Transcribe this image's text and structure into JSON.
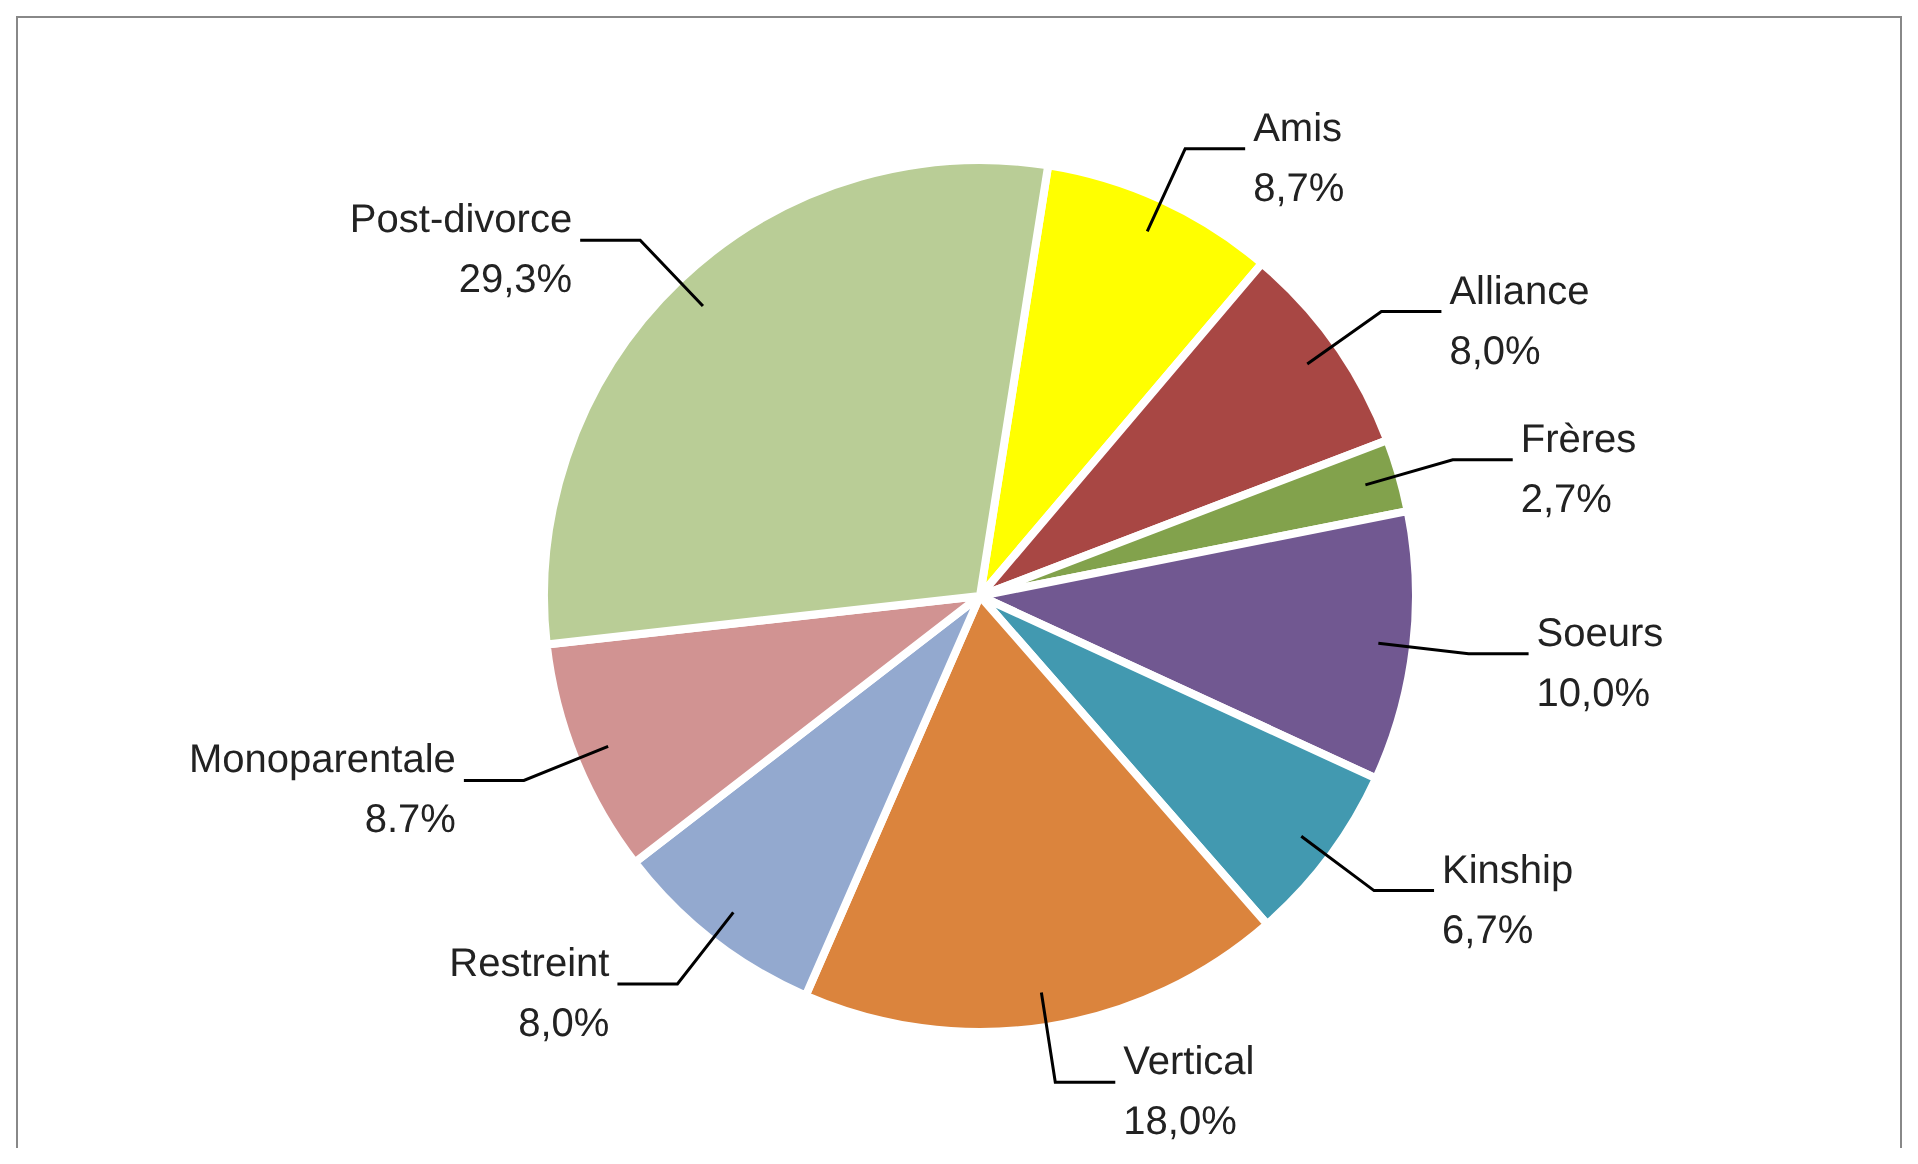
{
  "chart_data": {
    "type": "pie",
    "categories": [
      "Amis",
      "Alliance",
      "Frères",
      "Soeurs",
      "Kinship",
      "Vertical",
      "Restreint",
      "Monoparentale",
      "Post-divorce"
    ],
    "values": [
      8.7,
      8.0,
      2.7,
      10.0,
      6.7,
      18.0,
      8.0,
      8.7,
      29.3
    ],
    "value_labels": [
      "8,7%",
      "8,0%",
      "2,7%",
      "10,0%",
      "6,7%",
      "18,0%",
      "8,0%",
      "8.7%",
      "29,3%"
    ],
    "colors": [
      "#ffff00",
      "#a84744",
      "#82a24c",
      "#715891",
      "#4299b0",
      "#db843d",
      "#93a9cf",
      "#d19392",
      "#b9cd96"
    ]
  }
}
